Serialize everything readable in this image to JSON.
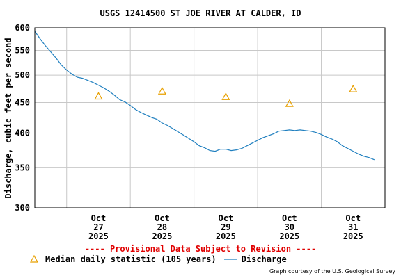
{
  "chart_data": {
    "type": "line",
    "title": "USGS 12414500 ST JOE RIVER AT CALDER, ID",
    "ylabel": "Discharge, cubic feet per second",
    "xlabel": "",
    "y_scale": "log",
    "ylim": [
      300,
      600
    ],
    "y_ticks": [
      300,
      350,
      400,
      450,
      500,
      550,
      600
    ],
    "grid": true,
    "x_ticks": [
      {
        "month": "Oct",
        "day": "27",
        "year": "2025"
      },
      {
        "month": "Oct",
        "day": "28",
        "year": "2025"
      },
      {
        "month": "Oct",
        "day": "29",
        "year": "2025"
      },
      {
        "month": "Oct",
        "day": "30",
        "year": "2025"
      },
      {
        "month": "Oct",
        "day": "31",
        "year": "2025"
      }
    ],
    "series": [
      {
        "name": "Discharge",
        "color": "#1f7fbf",
        "points": [
          [
            "2025-10-26 12:00",
            592
          ],
          [
            "2025-10-26 14:00",
            575
          ],
          [
            "2025-10-26 16:00",
            560
          ],
          [
            "2025-10-26 18:00",
            547
          ],
          [
            "2025-10-26 20:00",
            534
          ],
          [
            "2025-10-26 22:00",
            520
          ],
          [
            "2025-10-27 00:00",
            510
          ],
          [
            "2025-10-27 02:00",
            502
          ],
          [
            "2025-10-27 04:00",
            496
          ],
          [
            "2025-10-27 06:00",
            494
          ],
          [
            "2025-10-27 08:00",
            490
          ],
          [
            "2025-10-27 10:00",
            486
          ],
          [
            "2025-10-27 12:00",
            481
          ],
          [
            "2025-10-27 14:00",
            476
          ],
          [
            "2025-10-27 16:00",
            470
          ],
          [
            "2025-10-27 18:00",
            463
          ],
          [
            "2025-10-27 20:00",
            455
          ],
          [
            "2025-10-27 22:00",
            451
          ],
          [
            "2025-10-28 00:00",
            445
          ],
          [
            "2025-10-28 02:00",
            438
          ],
          [
            "2025-10-28 04:00",
            433
          ],
          [
            "2025-10-28 06:00",
            429
          ],
          [
            "2025-10-28 08:00",
            425
          ],
          [
            "2025-10-28 10:00",
            422
          ],
          [
            "2025-10-28 12:00",
            416
          ],
          [
            "2025-10-28 14:00",
            412
          ],
          [
            "2025-10-28 16:00",
            407
          ],
          [
            "2025-10-28 18:00",
            402
          ],
          [
            "2025-10-28 20:00",
            397
          ],
          [
            "2025-10-28 22:00",
            392
          ],
          [
            "2025-10-29 00:00",
            387
          ],
          [
            "2025-10-29 02:00",
            381
          ],
          [
            "2025-10-29 04:00",
            378
          ],
          [
            "2025-10-29 06:00",
            374
          ],
          [
            "2025-10-29 08:00",
            373
          ],
          [
            "2025-10-29 10:00",
            376
          ],
          [
            "2025-10-29 12:00",
            376
          ],
          [
            "2025-10-29 14:00",
            374
          ],
          [
            "2025-10-29 16:00",
            375
          ],
          [
            "2025-10-29 18:00",
            377
          ],
          [
            "2025-10-29 20:00",
            381
          ],
          [
            "2025-10-29 22:00",
            385
          ],
          [
            "2025-10-30 00:00",
            389
          ],
          [
            "2025-10-30 02:00",
            393
          ],
          [
            "2025-10-30 04:00",
            396
          ],
          [
            "2025-10-30 06:00",
            399
          ],
          [
            "2025-10-30 08:00",
            403
          ],
          [
            "2025-10-30 10:00",
            404
          ],
          [
            "2025-10-30 12:00",
            405
          ],
          [
            "2025-10-30 14:00",
            404
          ],
          [
            "2025-10-30 16:00",
            405
          ],
          [
            "2025-10-30 18:00",
            404
          ],
          [
            "2025-10-30 20:00",
            403
          ],
          [
            "2025-10-30 22:00",
            401
          ],
          [
            "2025-10-31 00:00",
            398
          ],
          [
            "2025-10-31 02:00",
            394
          ],
          [
            "2025-10-31 04:00",
            391
          ],
          [
            "2025-10-31 06:00",
            387
          ],
          [
            "2025-10-31 08:00",
            381
          ],
          [
            "2025-10-31 10:00",
            377
          ],
          [
            "2025-10-31 12:00",
            373
          ],
          [
            "2025-10-31 14:00",
            369
          ],
          [
            "2025-10-31 16:00",
            366
          ],
          [
            "2025-10-31 18:00",
            364
          ],
          [
            "2025-10-31 20:00",
            361
          ]
        ]
      },
      {
        "name": "Median daily statistic (105 years)",
        "color": "#e8a000",
        "marker": "triangle",
        "points": [
          [
            "2025-10-27 12:00",
            461
          ],
          [
            "2025-10-28 12:00",
            470
          ],
          [
            "2025-10-29 12:00",
            460
          ],
          [
            "2025-10-30 12:00",
            448
          ],
          [
            "2025-10-31 12:00",
            474
          ]
        ]
      }
    ]
  },
  "legend": {
    "median_label": "Median daily statistic (105 years)",
    "discharge_label": "Discharge"
  },
  "notice": "---- Provisional Data Subject to Revision ----",
  "credit": "Graph courtesy of the U.S. Geological Survey"
}
